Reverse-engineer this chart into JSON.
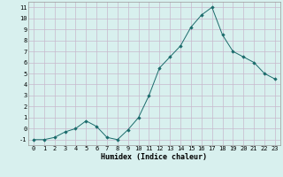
{
  "x": [
    0,
    1,
    2,
    3,
    4,
    5,
    6,
    7,
    8,
    9,
    10,
    11,
    12,
    13,
    14,
    15,
    16,
    17,
    18,
    19,
    20,
    21,
    22,
    23
  ],
  "y": [
    -1,
    -1,
    -0.8,
    -0.3,
    0,
    0.7,
    0.2,
    -0.8,
    -1,
    -0.1,
    1,
    3,
    5.5,
    6.5,
    7.5,
    9.2,
    10.3,
    11.0,
    8.5,
    7.0,
    6.5,
    6.0,
    5.0,
    4.5
  ],
  "line_color": "#1a6b6b",
  "marker": "D",
  "marker_size": 1.8,
  "bg_color": "#d8f0ee",
  "grid_color": "#c8b8cc",
  "xlabel": "Humidex (Indice chaleur)",
  "xlim": [
    -0.5,
    23.5
  ],
  "ylim": [
    -1.5,
    11.5
  ],
  "yticks": [
    -1,
    0,
    1,
    2,
    3,
    4,
    5,
    6,
    7,
    8,
    9,
    10,
    11
  ],
  "xticks": [
    0,
    1,
    2,
    3,
    4,
    5,
    6,
    7,
    8,
    9,
    10,
    11,
    12,
    13,
    14,
    15,
    16,
    17,
    18,
    19,
    20,
    21,
    22,
    23
  ],
  "tick_fontsize": 5.0,
  "xlabel_fontsize": 6.0,
  "linewidth": 0.7
}
